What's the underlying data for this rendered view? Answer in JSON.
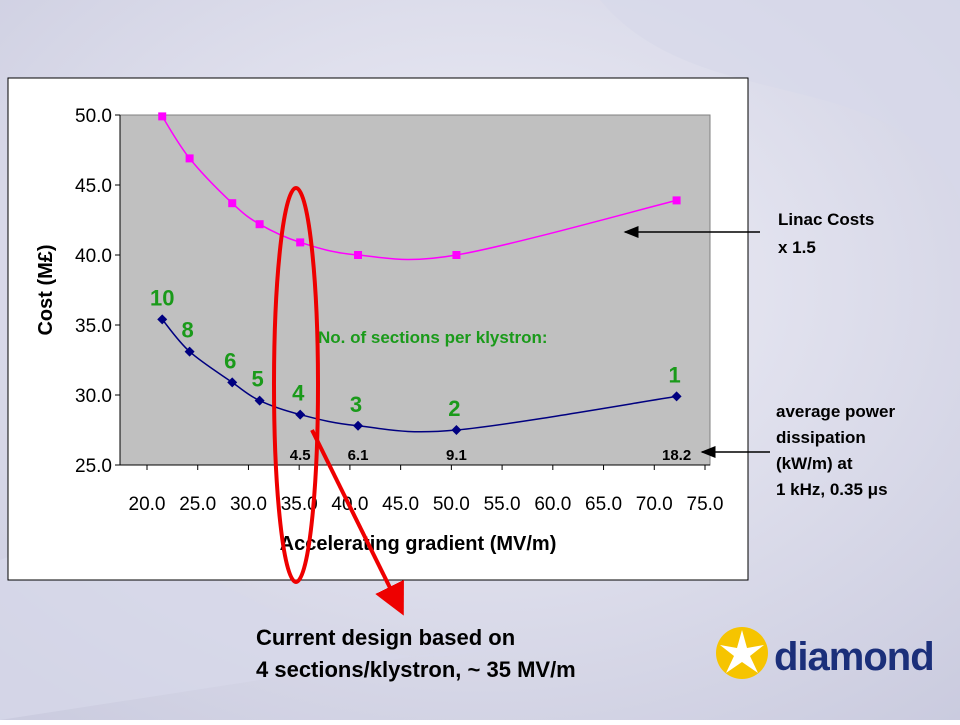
{
  "chart_data": {
    "type": "line",
    "y_label": "Cost (M£)",
    "x_label": "Accelerating gradient (MV/m)",
    "x": [
      21.5,
      24.2,
      28.4,
      31.1,
      35.1,
      40.8,
      50.5,
      72.2
    ],
    "series": [
      {
        "color": "#ff00ff",
        "marker": "square",
        "values": [
          49.9,
          46.9,
          43.7,
          42.2,
          40.9,
          40.0,
          40.0,
          43.9
        ]
      },
      {
        "color": "#000080",
        "marker": "diamond",
        "values": [
          35.4,
          33.1,
          30.9,
          29.6,
          28.6,
          27.8,
          27.5,
          29.9
        ],
        "sections_per_klystron": [
          10,
          8,
          6,
          5,
          4,
          3,
          2,
          1
        ],
        "power_dissipation": [
          null,
          null,
          null,
          null,
          4.5,
          6.1,
          9.1,
          18.2
        ]
      }
    ],
    "sections_title": "No. of sections per klystron:",
    "xlim": [
      20,
      75
    ],
    "ylim": [
      25,
      50
    ],
    "xticks": [
      {
        "value": 20,
        "label": "20.0"
      },
      {
        "value": 25,
        "label": "25.0"
      },
      {
        "value": 30,
        "label": "30.0"
      },
      {
        "value": 35,
        "label": "35.0"
      },
      {
        "value": 40,
        "label": "40.0"
      },
      {
        "value": 45,
        "label": "45.0"
      },
      {
        "value": 50,
        "label": "50.0"
      },
      {
        "value": 55,
        "label": "55.0"
      },
      {
        "value": 60,
        "label": "60.0"
      },
      {
        "value": 65,
        "label": "65.0"
      },
      {
        "value": 70,
        "label": "70.0"
      },
      {
        "value": 75,
        "label": "75.0"
      }
    ],
    "yticks": [
      {
        "value": 25,
        "label": "25.0"
      },
      {
        "value": 30,
        "label": "30.0"
      },
      {
        "value": 35,
        "label": "35.0"
      },
      {
        "value": 40,
        "label": "40.0"
      },
      {
        "value": 45,
        "label": "45.0"
      },
      {
        "value": 50,
        "label": "50.0"
      }
    ],
    "grid": false,
    "plot_background": "#c0c0c0"
  },
  "slide": {
    "linac_note": [
      "Linac Costs",
      "x 1.5"
    ],
    "power_note": [
      "average power",
      "dissipation",
      "(kW/m) at",
      "1 kHz, 0.35 μs"
    ],
    "conclusion": [
      "Current design based on",
      "4 sections/klystron, ~ 35 MV/m"
    ],
    "logo": "diamond"
  }
}
